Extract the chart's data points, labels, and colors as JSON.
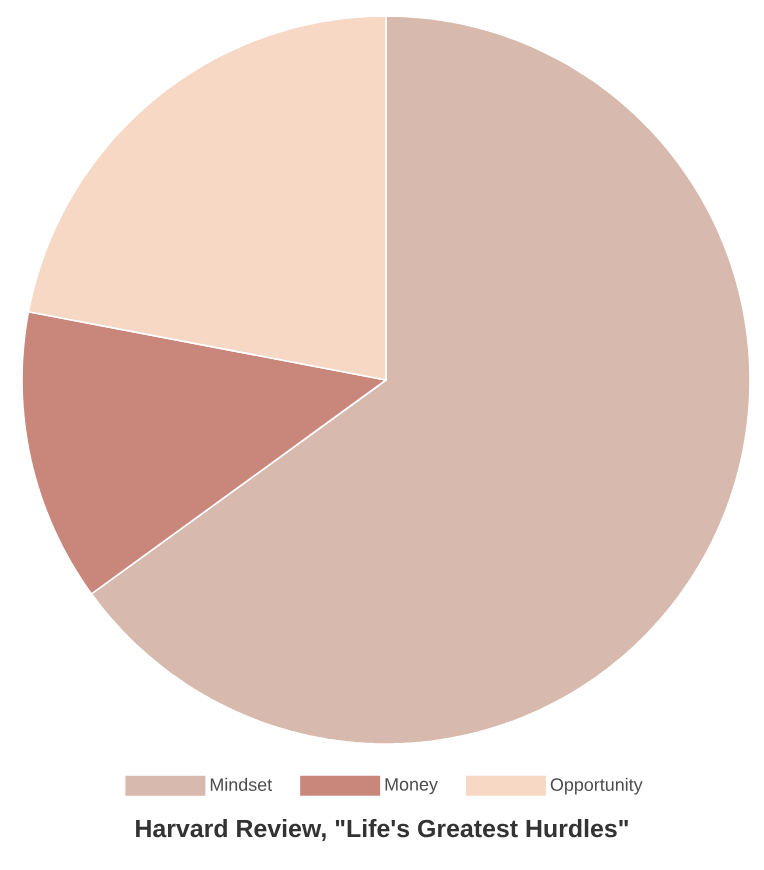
{
  "chart_data": {
    "type": "pie",
    "title": "Harvard Review, \"Life's Greatest Hurdles\"",
    "categories": [
      "Mindset",
      "Money",
      "Opportunity"
    ],
    "values": [
      65,
      13,
      22
    ],
    "colors": [
      "#d8b9ad",
      "#c9877c",
      "#f6d8c5"
    ],
    "legend": "bottom"
  }
}
